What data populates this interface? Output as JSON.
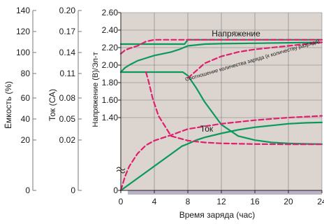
{
  "chart_data": {
    "type": "line",
    "title": "",
    "xlabel": "Время заряда (час)",
    "ylabel": "Напряжение (В)/Эл-т",
    "xlim": [
      0,
      24
    ],
    "ylim": [
      0,
      2.6
    ],
    "x_ticks": [
      "0",
      "4",
      "8",
      "12",
      "16",
      "20",
      "24"
    ],
    "y_ticks": [
      "0",
      "1.40",
      "1.60",
      "1.80",
      "2.00",
      "2.20",
      "2.40",
      "2.60"
    ],
    "extra_axes": [
      {
        "label": "Ёмкость (%)",
        "ticks": [
          "0",
          "20",
          "40",
          "60",
          "80",
          "100",
          "120",
          "140"
        ]
      },
      {
        "label": "Ток (СА)",
        "ticks": [
          "0",
          "0.02",
          "0.05",
          "0.08",
          "0.11",
          "0.14",
          "0.17",
          "0.20"
        ]
      }
    ],
    "annotations": {
      "voltage": "Напряжение",
      "current": "Ток",
      "ratio": "Соотношение количества заряда (к количеству разряда)"
    },
    "grid": true,
    "background": "#dcd4cf",
    "colors": {
      "solid": "#0a9a5c",
      "dashed": "#e0206e"
    },
    "series": [
      {
        "style": "solid",
        "x": [
          0,
          0.5,
          1,
          2,
          3,
          4,
          5,
          6,
          7,
          8,
          10,
          12,
          16,
          20,
          24
        ],
        "y": [
          1.92,
          1.97,
          2.0,
          2.05,
          2.08,
          2.11,
          2.13,
          2.15,
          2.18,
          2.22,
          2.24,
          2.245,
          2.25,
          2.255,
          2.26
        ]
      },
      {
        "style": "solid",
        "x": [
          0,
          7.4,
          8,
          9,
          10,
          12,
          14,
          16,
          18,
          20,
          22,
          24
        ],
        "y": [
          1.92,
          1.92,
          1.88,
          1.74,
          1.58,
          1.32,
          1.18,
          1.09,
          1.04,
          1.02,
          1.01,
          1.005
        ]
      },
      {
        "style": "solid",
        "x": [
          0,
          7.6,
          8,
          24
        ],
        "y": [
          2.24,
          2.24,
          2.29,
          2.29
        ]
      },
      {
        "style": "solid",
        "x": [
          0,
          7.3,
          8,
          9,
          10,
          12,
          14,
          16,
          18,
          20,
          22,
          24
        ],
        "y": [
          0,
          0.96,
          1.01,
          1.09,
          1.15,
          1.22,
          1.26,
          1.29,
          1.31,
          1.33,
          1.34,
          1.345
        ]
      },
      {
        "style": "dashed",
        "x": [
          0,
          0.5,
          1,
          2,
          3,
          4,
          6,
          8,
          12,
          16,
          20,
          24
        ],
        "y": [
          2.13,
          2.17,
          2.19,
          2.22,
          2.27,
          2.29,
          2.29,
          2.29,
          2.29,
          2.29,
          2.29,
          2.29
        ]
      },
      {
        "style": "dashed",
        "x": [
          3.0,
          3.3,
          3.8,
          4.5,
          6,
          8,
          10,
          12,
          16,
          20,
          24
        ],
        "y": [
          1.92,
          1.82,
          1.62,
          1.42,
          1.18,
          1.08,
          1.04,
          1.02,
          1.005,
          1.0,
          1.0
        ]
      },
      {
        "style": "dashed",
        "x": [
          0,
          0.5,
          1,
          2,
          3,
          4,
          6,
          8,
          10,
          12,
          16,
          20,
          24
        ],
        "y": [
          0,
          0.3,
          0.52,
          0.8,
          0.98,
          1.08,
          1.2,
          1.27,
          1.3,
          1.33,
          1.37,
          1.4,
          1.42
        ]
      },
      {
        "style": "dashed",
        "x": [
          8,
          10,
          12,
          14,
          16,
          18,
          20,
          22,
          24
        ],
        "y": [
          1.85,
          2.02,
          2.1,
          2.15,
          2.18,
          2.2,
          2.22,
          2.24,
          2.26
        ]
      }
    ]
  }
}
